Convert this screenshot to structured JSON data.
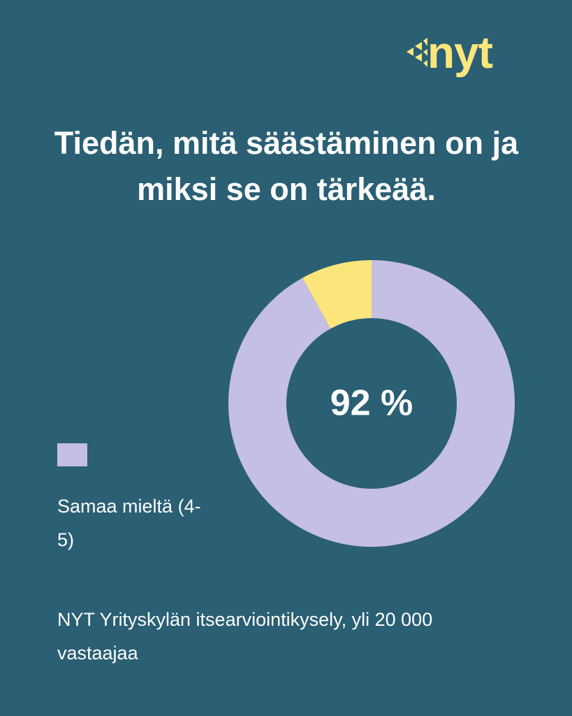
{
  "logo": "nyt",
  "chart_data": {
    "type": "donut",
    "title": "Tiedän, mitä säästäminen on ja miksi se on tärkeää.",
    "categories": [
      "Samaa mieltä (4-5)",
      null
    ],
    "values": [
      92,
      8
    ],
    "value_labels": [
      "92 %",
      null
    ],
    "colors": [
      "#c4bfe3",
      "#fce67c"
    ],
    "legend": "left",
    "source": "NYT Yrityskylän itsearviointikysely, yli 20 000 vastaajaa"
  }
}
